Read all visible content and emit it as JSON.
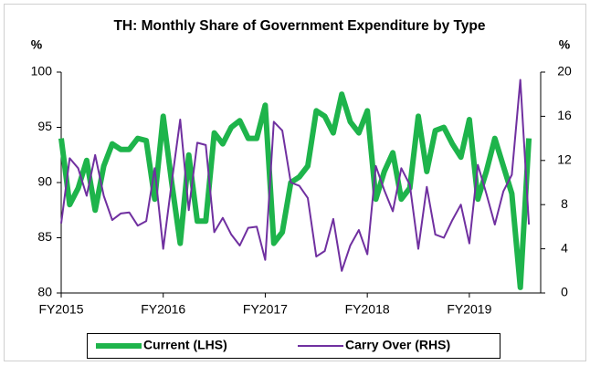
{
  "chart_data": {
    "type": "line",
    "title": "TH: Monthly Share of Government Expenditure by Type",
    "ylabel": "%",
    "y2label": "%",
    "categories": [
      "FY2015",
      null,
      null,
      null,
      null,
      null,
      null,
      null,
      null,
      null,
      null,
      null,
      "FY2016",
      null,
      null,
      null,
      null,
      null,
      null,
      null,
      null,
      null,
      null,
      null,
      "FY2017",
      null,
      null,
      null,
      null,
      null,
      null,
      null,
      null,
      null,
      null,
      null,
      "FY2018",
      null,
      null,
      null,
      null,
      null,
      null,
      null,
      null,
      null,
      null,
      null,
      "FY2019",
      null,
      null,
      null,
      null,
      null,
      null,
      null
    ],
    "series": [
      {
        "name": "Current (LHS)",
        "color": "#1eb44b",
        "axis": "y",
        "values": [
          94,
          88,
          89.5,
          92,
          87.5,
          91.5,
          93.5,
          93,
          93,
          94,
          93.8,
          88.5,
          96,
          90,
          84.5,
          92.5,
          86.5,
          86.5,
          94.5,
          93.5,
          95,
          95.6,
          94,
          94,
          97,
          84.5,
          85.5,
          90,
          90.5,
          91.5,
          96.5,
          96,
          94.5,
          98,
          95.5,
          94.5,
          96.5,
          88.5,
          91,
          92.7,
          88.5,
          89.5,
          96,
          91,
          94.7,
          95,
          93.5,
          92.3,
          95.7,
          88.5,
          91,
          94,
          91.5,
          89,
          80.5,
          94
        ]
      },
      {
        "name": "Carry Over (RHS)",
        "color": "#7030a0",
        "axis": "y2",
        "values": [
          6.3,
          12.2,
          11.3,
          8.8,
          12.5,
          8.8,
          6.6,
          7.2,
          7.3,
          6.1,
          6.5,
          11.3,
          4,
          10,
          15.7,
          7.5,
          13.6,
          13.4,
          5.5,
          6.8,
          5.3,
          4.3,
          5.9,
          6,
          3,
          15.5,
          14.7,
          10,
          9.7,
          8.6,
          3.3,
          3.8,
          6.7,
          2,
          4.3,
          5.7,
          3.5,
          11.5,
          9.3,
          7.4,
          11.3,
          9.8,
          4,
          9.6,
          5.3,
          5,
          6.6,
          8,
          4.5,
          11.6,
          9,
          6.2,
          9.2,
          10.7,
          19.3,
          6.2
        ]
      }
    ],
    "ylim": [
      80,
      100
    ],
    "yticks": [
      80,
      85,
      90,
      95,
      100
    ],
    "y2lim": [
      0,
      20
    ],
    "y2ticks": [
      0,
      4,
      8,
      12,
      16,
      20
    ]
  }
}
